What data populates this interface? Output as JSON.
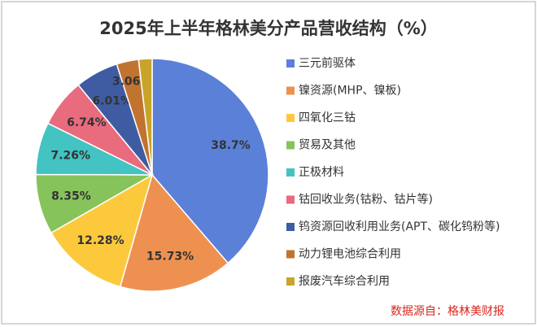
{
  "chart_data": {
    "type": "pie",
    "title": "2025年上半年格林美分产品营收结构（%）",
    "categories": [
      "三元前驱体",
      "镍资源(MHP、镍板)",
      "四氧化三钴",
      "贸易及其他",
      "正极材料",
      "钴回收业务(钴粉、钴片等)",
      "钨资源回收利用业务(APT、碳化钨粉等)",
      "动力锂电池综合利用",
      "报废汽车综合利用"
    ],
    "values": [
      38.7,
      15.73,
      12.28,
      8.35,
      7.26,
      6.74,
      6.01,
      3.06,
      1.87
    ],
    "value_labels": [
      "38.7%",
      "15.73%",
      "12.28%",
      "8.35%",
      "7.26%",
      "6.74%",
      "6.01%",
      "3.06%",
      null
    ],
    "colors": [
      "#5b80d8",
      "#ee9150",
      "#fdc93c",
      "#86c35a",
      "#43c3c1",
      "#e86b7e",
      "#3f5ca3",
      "#c07430",
      "#c9a42a"
    ],
    "legend": "right",
    "source": "数据源自：格林美财报"
  }
}
